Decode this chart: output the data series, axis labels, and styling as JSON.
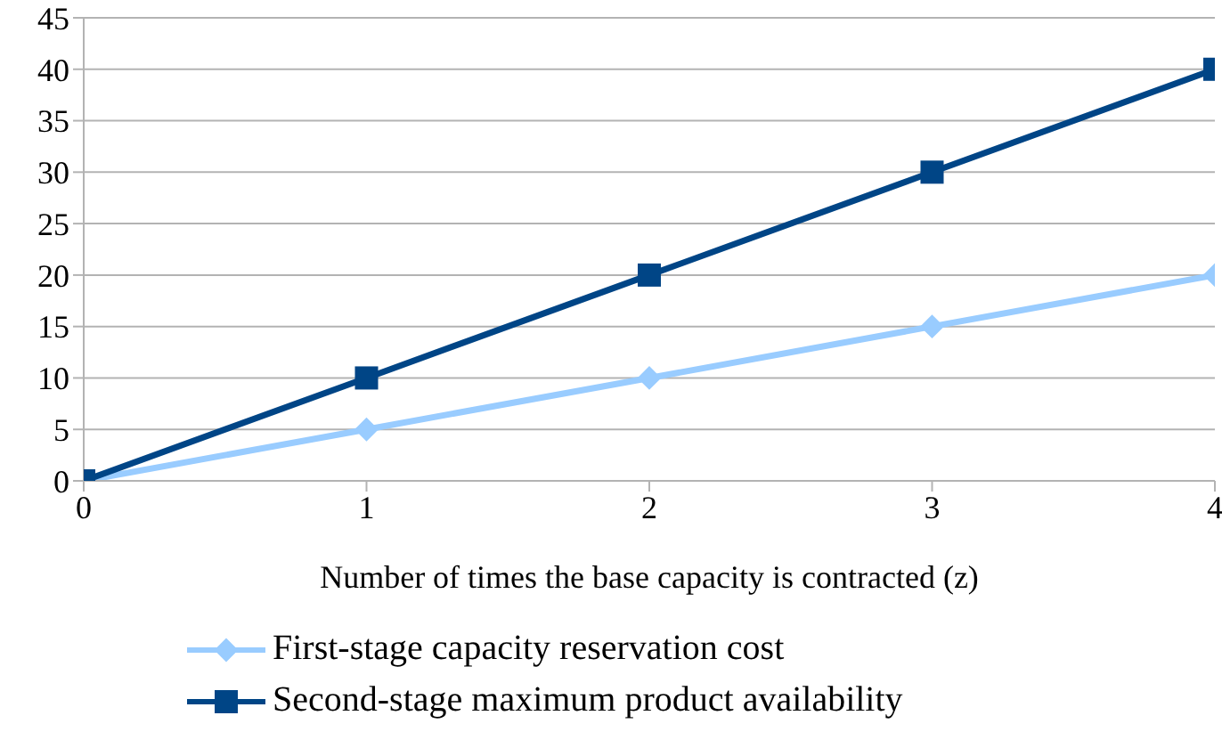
{
  "chart_data": {
    "type": "line",
    "xlabel": "Number of times the base capacity is contracted (z)",
    "x": [
      0,
      1,
      2,
      3,
      4
    ],
    "xlim": [
      0,
      4
    ],
    "xticks": [
      0,
      1,
      2,
      3,
      4
    ],
    "ylim": [
      0,
      45
    ],
    "yticks": [
      0,
      5,
      10,
      15,
      20,
      25,
      30,
      35,
      40,
      45
    ],
    "grid": "y",
    "legend": "bottom",
    "series": [
      {
        "name": "First-stage capacity reservation cost",
        "color": "#99ccff",
        "values": [
          0,
          5,
          10,
          15,
          20
        ],
        "marker": "diamond"
      },
      {
        "name": "Second-stage maximum product availability",
        "color": "#004586",
        "values": [
          0,
          10,
          20,
          30,
          40
        ],
        "marker": "square"
      }
    ]
  }
}
